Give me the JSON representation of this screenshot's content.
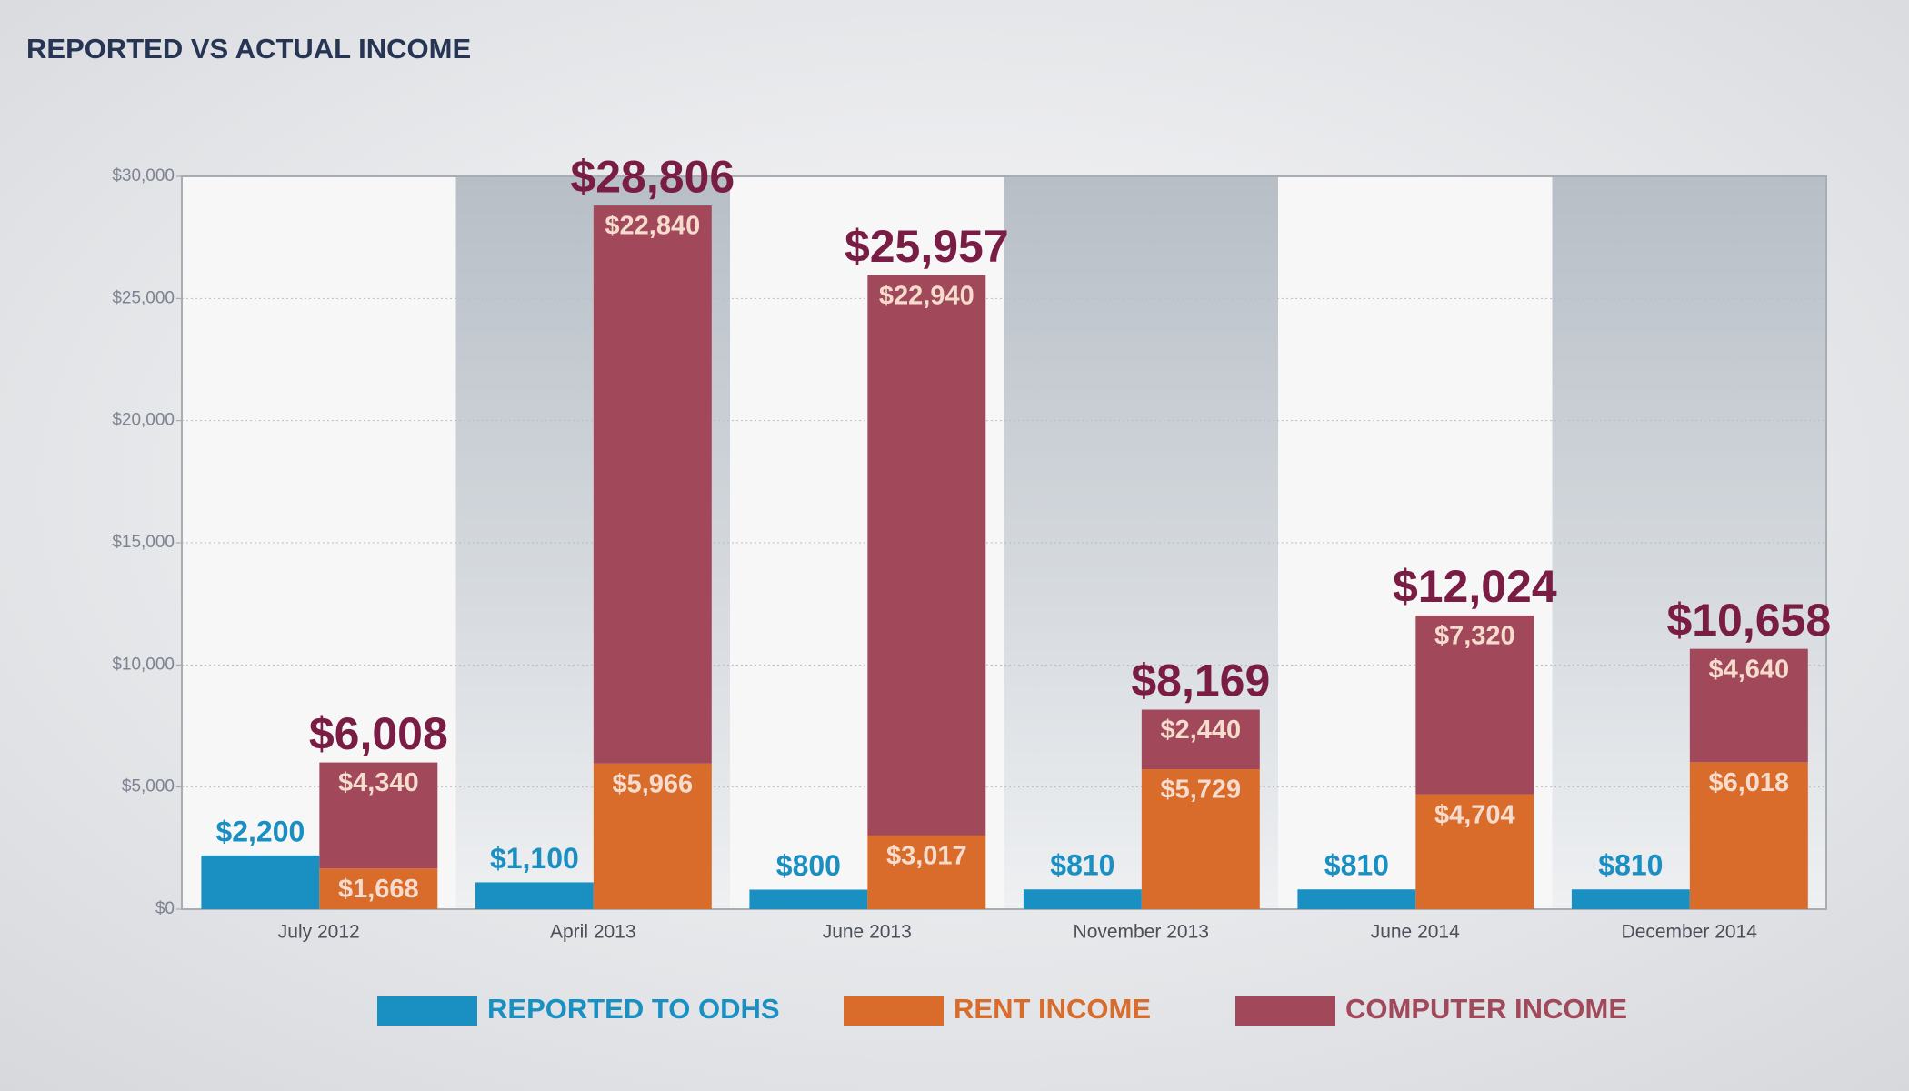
{
  "chart_data": {
    "type": "stacked_bar_grouped",
    "title": "REPORTED VS ACTUAL INCOME",
    "categories": [
      "July 2012",
      "April 2013",
      "June 2013",
      "November 2013",
      "June 2014",
      "December 2014"
    ],
    "series": [
      {
        "name": "REPORTED TO ODHS",
        "color": "#1a90c2",
        "stack": "reported",
        "values": [
          2200,
          1100,
          800,
          810,
          810,
          810
        ],
        "value_labels": [
          "$2,200",
          "$1,100",
          "$800",
          "$810",
          "$810",
          "$810"
        ]
      },
      {
        "name": "RENT INCOME",
        "color": "#d96b2b",
        "stack": "actual",
        "values": [
          1668,
          5966,
          3017,
          5729,
          4704,
          6018
        ],
        "value_labels": [
          "$1,668",
          "$5,966",
          "$3,017",
          "$5,729",
          "$4,704",
          "$6,018"
        ]
      },
      {
        "name": "COMPUTER INCOME",
        "color": "#a1485a",
        "stack": "actual",
        "values": [
          4340,
          22840,
          22940,
          2440,
          7320,
          4640
        ],
        "value_labels": [
          "$4,340",
          "$22,840",
          "$22,940",
          "$2,440",
          "$7,320",
          "$4,640"
        ]
      }
    ],
    "totals": {
      "values": [
        6008,
        28806,
        25957,
        8169,
        12024,
        10658
      ],
      "value_labels": [
        "$6,008",
        "$28,806",
        "$25,957",
        "$8,169",
        "$12,024",
        "$10,658"
      ]
    },
    "ylim": [
      0,
      30000
    ],
    "yticks": [
      {
        "value": 0,
        "label": "$0"
      },
      {
        "value": 5000,
        "label": "$5,000"
      },
      {
        "value": 10000,
        "label": "$10,000"
      },
      {
        "value": 15000,
        "label": "$15,000"
      },
      {
        "value": 20000,
        "label": "$20,000"
      },
      {
        "value": 25000,
        "label": "$25,000"
      },
      {
        "value": 30000,
        "label": "$30,000"
      }
    ],
    "grid": true,
    "legend": "bottom"
  }
}
